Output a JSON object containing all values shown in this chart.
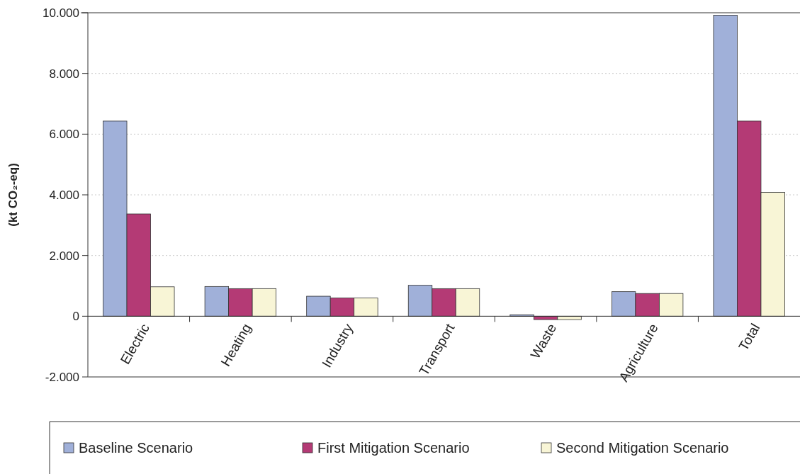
{
  "chart_data": {
    "type": "bar",
    "ylabel": "(kt CO₂-eq)",
    "categories": [
      "Electric",
      "Heating",
      "Industry",
      "Transport",
      "Waste",
      "Agriculture",
      "Total"
    ],
    "series": [
      {
        "name": "Baseline Scenario",
        "color": "#a0b0d9",
        "values": [
          6430,
          980,
          660,
          1020,
          50,
          810,
          9920
        ]
      },
      {
        "name": "First Mitigation Scenario",
        "color": "#b43a75",
        "values": [
          3370,
          910,
          600,
          910,
          -110,
          750,
          6430
        ]
      },
      {
        "name": "Second Mitigation Scenario",
        "color": "#f8f5d6",
        "values": [
          970,
          910,
          600,
          910,
          -110,
          750,
          4080
        ]
      }
    ],
    "ylim": [
      -2000,
      10000
    ],
    "yticks": [
      {
        "value": -2000,
        "label": "-2.000"
      },
      0,
      {
        "value": 2000,
        "label": "2.000"
      },
      {
        "value": 4000,
        "label": "4.000"
      },
      {
        "value": 6000,
        "label": "6.000"
      },
      {
        "value": 8000,
        "label": "8.000"
      },
      {
        "value": 10000,
        "label": "10.000"
      }
    ],
    "grid": "y",
    "legend": "bottom"
  }
}
